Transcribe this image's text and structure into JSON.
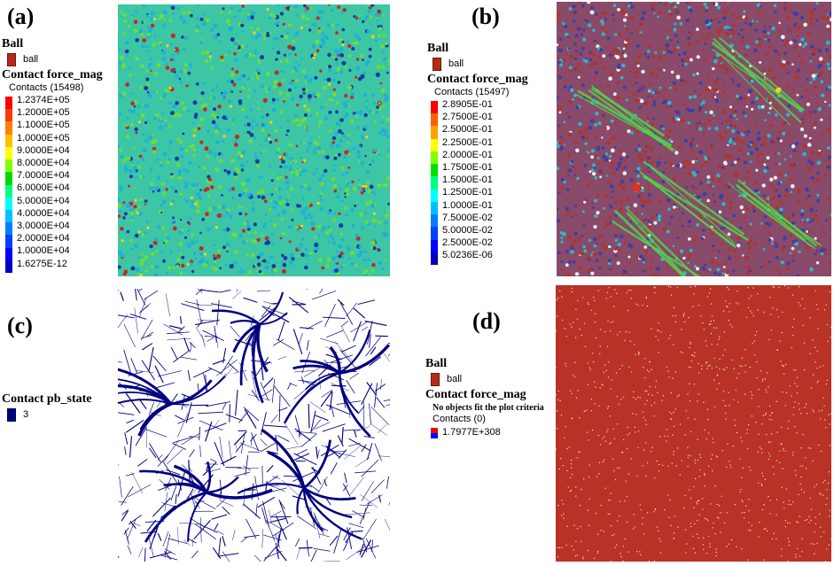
{
  "panels": {
    "a": {
      "label": "(a)",
      "legend": {
        "ball_title": "Ball",
        "ball_item": "ball",
        "force_title": "Contact force_mag",
        "contacts": "Contacts (15498)",
        "scale": [
          "1.2374E+05",
          "1.2000E+05",
          "1.1000E+05",
          "1.0000E+05",
          "9.0000E+04",
          "8.0000E+04",
          "7.0000E+04",
          "6.0000E+04",
          "5.0000E+04",
          "4.0000E+04",
          "3.0000E+04",
          "2.0000E+04",
          "1.0000E+04",
          "1.6275E-12"
        ],
        "colors": [
          "#ff0000",
          "#ff3a00",
          "#ff8000",
          "#ffbf00",
          "#ffff00",
          "#80ff00",
          "#00d800",
          "#00ff80",
          "#00ffff",
          "#00c0ff",
          "#0080ff",
          "#0040ff",
          "#0000ff",
          "#0000c0"
        ]
      }
    },
    "b": {
      "label": "(b)",
      "legend": {
        "ball_title": "Ball",
        "ball_item": "ball",
        "force_title": "Contact force_mag",
        "contacts": "Contacts (15497)",
        "scale": [
          "2.8905E-01",
          "2.7500E-01",
          "2.5000E-01",
          "2.2500E-01",
          "2.0000E-01",
          "1.7500E-01",
          "1.5000E-01",
          "1.2500E-01",
          "1.0000E-01",
          "7.5000E-02",
          "5.0000E-02",
          "2.5000E-02",
          "5.0236E-06"
        ],
        "colors": [
          "#ff0000",
          "#ff6000",
          "#ffa000",
          "#ffff00",
          "#80ff00",
          "#00e000",
          "#00ff80",
          "#00ffff",
          "#00c0ff",
          "#0080ff",
          "#0040ff",
          "#0000ff",
          "#0000c0"
        ]
      }
    },
    "c": {
      "label": "(c)",
      "legend": {
        "title": "Contact pb_state",
        "item": "3",
        "color": "#00007f"
      }
    },
    "d": {
      "label": "(d)",
      "legend": {
        "ball_title": "Ball",
        "ball_item": "ball",
        "force_title": "Contact force_mag",
        "note": "No objects fit the plot criteria",
        "contacts": "Contacts (0)",
        "value": "1.7977E+308"
      }
    }
  },
  "colors": {
    "ball": "#b72a1a",
    "network": "#00007f",
    "force_base": "#20b8c8",
    "force_mid": "#5fd24a"
  }
}
